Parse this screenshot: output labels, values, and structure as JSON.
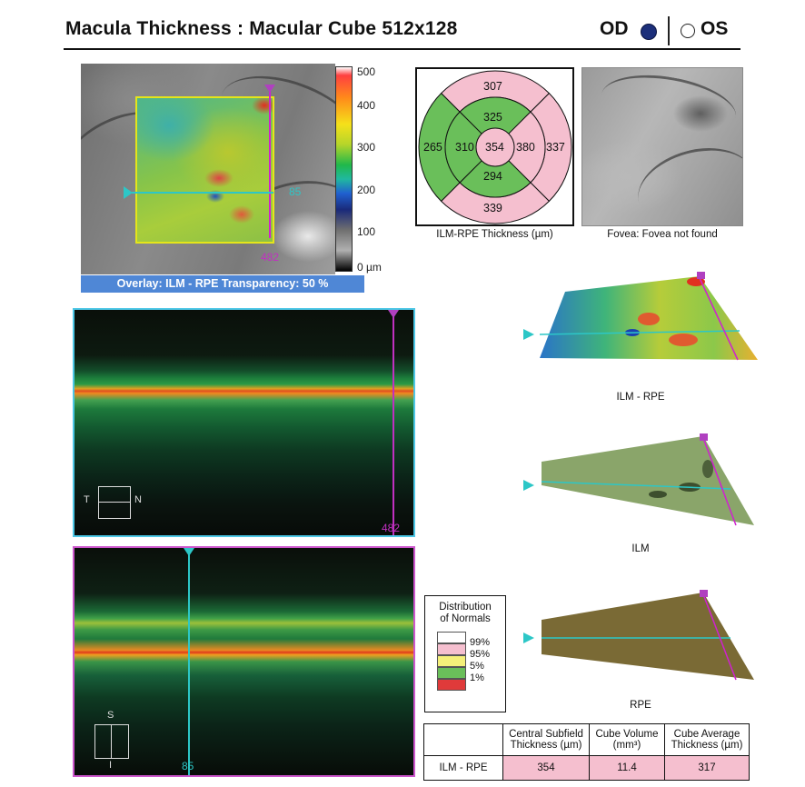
{
  "header": {
    "title": "Macula Thickness : Macular Cube 512x128",
    "od_label": "OD",
    "os_label": "OS",
    "selected_eye": "OD"
  },
  "fundus": {
    "vertical_scan_label": "482",
    "horizontal_scan_label": "85",
    "colorbar_labels": [
      "500",
      "400",
      "300",
      "200",
      "100",
      "0 µm"
    ],
    "overlay_text": "Overlay: ILM - RPE  Transparency: 50 %"
  },
  "etdrs": {
    "superior_outer": "307",
    "superior_inner": "325",
    "nasal_outer": "265",
    "nasal_inner": "310",
    "center": "354",
    "temporal_inner": "380",
    "temporal_outer": "337",
    "inferior_inner": "294",
    "inferior_outer": "339",
    "caption": "ILM-RPE Thickness (µm)",
    "colors": {
      "pink": "#f5bfcf",
      "green": "#6abf5a"
    }
  },
  "fovea": {
    "caption": "Fovea: Fovea not found"
  },
  "surfaces": {
    "ilm_rpe": "ILM - RPE",
    "ilm": "ILM",
    "rpe": "RPE"
  },
  "bscan_top": {
    "orient_left": "T",
    "orient_right": "N",
    "scan_number": "482"
  },
  "bscan_bottom": {
    "orient_top": "S",
    "orient_bottom": "I",
    "scan_number": "85"
  },
  "legend": {
    "title_line1": "Distribution",
    "title_line2": "of Normals",
    "items": [
      {
        "label": "99%",
        "color": "#ffffff"
      },
      {
        "label": "95%",
        "color": "#f5bfcf"
      },
      {
        "label": "5%",
        "color": "#f5f07a"
      },
      {
        "label": "1%",
        "color": "#6abf5a"
      },
      {
        "label": "",
        "color": "#e03a3a"
      }
    ]
  },
  "summary_table": {
    "headers": [
      "Central Subfield Thickness (µm)",
      "Cube Volume (mm³)",
      "Cube Average Thickness (µm)"
    ],
    "row_label": "ILM - RPE",
    "values": [
      "354",
      "11.4",
      "317"
    ]
  }
}
